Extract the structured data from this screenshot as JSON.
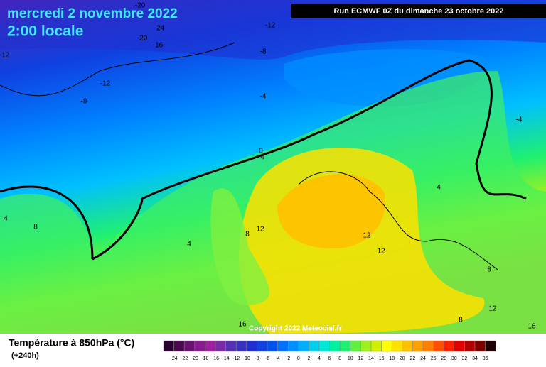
{
  "header": {
    "title": "mercredi 2 novembre 2022",
    "subtitle": "2:00 locale",
    "run": "Run ECMWF 0Z du dimanche 23 octobre 2022"
  },
  "copyright": "Copyright 2022 Meteociel.fr",
  "legend": {
    "title": "Température à 850hPa (°C)",
    "lead": "(+240h)",
    "colors": [
      "#2a0030",
      "#4b0a4d",
      "#6a1270",
      "#8a1a8f",
      "#a020a0",
      "#7a2aa8",
      "#5530b0",
      "#3a30c0",
      "#2030d0",
      "#1040e0",
      "#0050f0",
      "#0070ff",
      "#0090ff",
      "#00b0ff",
      "#00d0f0",
      "#00e8d8",
      "#00f0a0",
      "#20f070",
      "#60f040",
      "#a0f020",
      "#d0f000",
      "#ffff00",
      "#ffe000",
      "#ffc000",
      "#ffa000",
      "#ff8000",
      "#ff5000",
      "#ff2000",
      "#e00000",
      "#b00000",
      "#800000",
      "#200000"
    ],
    "labels": [
      -24,
      -22,
      -20,
      -18,
      -16,
      -14,
      -12,
      -10,
      -8,
      -6,
      -4,
      -2,
      0,
      2,
      4,
      6,
      8,
      10,
      12,
      14,
      16,
      18,
      20,
      22,
      24,
      26,
      28,
      30,
      32,
      34,
      36
    ]
  },
  "contour_labels": [
    -20,
    -24,
    -20,
    -16,
    -12,
    -12,
    -8,
    -12,
    -8,
    -4,
    0,
    4,
    -4,
    4,
    8,
    8,
    12,
    4,
    4,
    12,
    12,
    8,
    12,
    8,
    16,
    16
  ]
}
